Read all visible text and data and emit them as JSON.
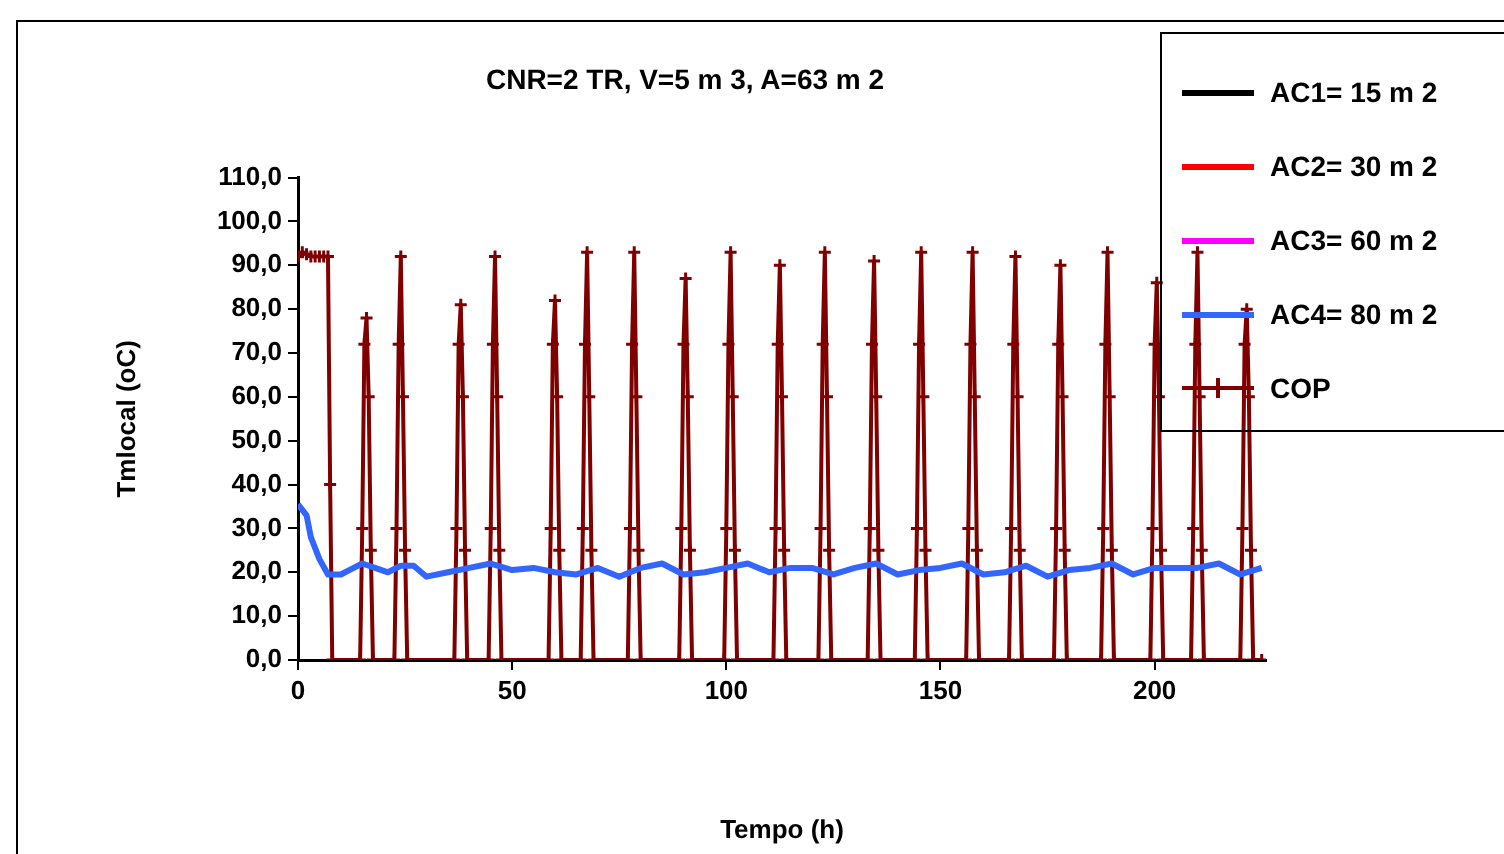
{
  "chart_data": {
    "type": "line",
    "title": "CNR=2 TR, V=5 m 3, A=63 m 2",
    "xlabel": "Tempo (h)",
    "ylabel": "Tmlocal (oC)",
    "xlim": [
      0,
      226
    ],
    "xticks": [
      0,
      50,
      100,
      150,
      200
    ],
    "ylim": [
      0,
      110
    ],
    "yticks": [
      {
        "value": 0,
        "label": "0,0"
      },
      {
        "value": 10,
        "label": "10,0"
      },
      {
        "value": 20,
        "label": "20,0"
      },
      {
        "value": 30,
        "label": "30,0"
      },
      {
        "value": 40,
        "label": "40,0"
      },
      {
        "value": 50,
        "label": "50,0"
      },
      {
        "value": 60,
        "label": "60,0"
      },
      {
        "value": 70,
        "label": "70,0"
      },
      {
        "value": 80,
        "label": "80,0"
      },
      {
        "value": 90,
        "label": "90,0"
      },
      {
        "value": 100,
        "label": "100,0"
      },
      {
        "value": 110,
        "label": "110,0"
      }
    ],
    "grid": false,
    "legend": "top right",
    "line_style": "solid",
    "series": [
      {
        "name": "AC1= 15 m 2",
        "color": "#000000",
        "marker": "none"
      },
      {
        "name": "AC2= 30 m 2",
        "color": "#ff0000",
        "marker": "none"
      },
      {
        "name": "AC3= 60 m 2",
        "color": "#ff00ff",
        "marker": "none"
      },
      {
        "name": "AC4= 80 m 2",
        "color": "#3366ff",
        "marker": "none",
        "x": [
          0,
          2,
          3,
          5,
          7,
          10,
          13,
          15,
          18,
          21,
          24,
          27,
          30,
          35,
          40,
          45,
          50,
          55,
          60,
          65,
          70,
          75,
          80,
          85,
          90,
          95,
          100,
          105,
          110,
          115,
          120,
          125,
          130,
          135,
          140,
          145,
          150,
          155,
          160,
          165,
          170,
          175,
          180,
          185,
          190,
          195,
          200,
          205,
          210,
          215,
          220,
          225
        ],
        "values": [
          35.5,
          33,
          28,
          23,
          19.5,
          19.5,
          21,
          22,
          21,
          20,
          21.5,
          21.5,
          19,
          20,
          21,
          22,
          20.5,
          21,
          20,
          19.5,
          21,
          19,
          21,
          22,
          19.5,
          20,
          21,
          22,
          20,
          21,
          21,
          19.5,
          21,
          22,
          19.5,
          20.5,
          21,
          22,
          19.5,
          20,
          21.5,
          19,
          20.5,
          21,
          22,
          19.5,
          21,
          21,
          21,
          22,
          19.5,
          21
        ]
      },
      {
        "name": "COP",
        "color": "#800000",
        "marker": "cross",
        "x": [
          0,
          1,
          2,
          3,
          4,
          5,
          6,
          7,
          7.5,
          8,
          14.5,
          15,
          15.5,
          16,
          16.5,
          17,
          17.5,
          22.5,
          23,
          23.5,
          24,
          24.5,
          25,
          25.5,
          36.5,
          37,
          37.5,
          38,
          38.5,
          39,
          39.5,
          44.5,
          45,
          45.5,
          46,
          46.5,
          47,
          47.5,
          58.5,
          59,
          59.5,
          60,
          60.5,
          61,
          61.5,
          66,
          66.5,
          67,
          67.5,
          68,
          68.5,
          69,
          77,
          77.5,
          78,
          78.5,
          79,
          79.5,
          80,
          89,
          89.5,
          90,
          90.5,
          91,
          91.5,
          92,
          99.5,
          100,
          100.5,
          101,
          101.5,
          102,
          102.5,
          111,
          111.5,
          112,
          112.5,
          113,
          113.5,
          114,
          121.5,
          122,
          122.5,
          123,
          123.5,
          124,
          124.5,
          133,
          133.5,
          134,
          134.5,
          135,
          135.5,
          136,
          144,
          144.5,
          145,
          145.5,
          146,
          146.5,
          147,
          156,
          156.5,
          157,
          157.5,
          158,
          158.5,
          159,
          166,
          166.5,
          167,
          167.5,
          168,
          168.5,
          169,
          176.5,
          177,
          177.5,
          178,
          178.5,
          179,
          179.5,
          187.5,
          188,
          188.5,
          189,
          189.5,
          190,
          190.5,
          199,
          199.5,
          200,
          200.5,
          201,
          201.5,
          202,
          208.5,
          209,
          209.5,
          210,
          210.5,
          211,
          211.5,
          220,
          220.5,
          221,
          221.5,
          222,
          222.5,
          223,
          225
        ],
        "values": [
          92,
          93,
          92.5,
          92,
          92,
          92,
          92,
          92,
          40,
          0,
          0,
          30,
          72,
          78,
          60,
          25,
          0,
          0,
          30,
          72,
          92,
          60,
          25,
          0,
          0,
          30,
          72,
          81,
          60,
          25,
          0,
          0,
          30,
          72,
          92,
          60,
          25,
          0,
          0,
          30,
          72,
          82,
          60,
          25,
          0,
          0,
          30,
          72,
          93,
          60,
          25,
          0,
          0,
          30,
          72,
          93,
          60,
          25,
          0,
          0,
          30,
          72,
          87,
          60,
          25,
          0,
          0,
          30,
          72,
          93,
          60,
          25,
          0,
          0,
          30,
          72,
          90,
          60,
          25,
          0,
          0,
          30,
          72,
          93,
          60,
          25,
          0,
          0,
          30,
          72,
          91,
          60,
          25,
          0,
          0,
          30,
          72,
          93,
          60,
          25,
          0,
          0,
          30,
          72,
          93,
          60,
          25,
          0,
          0,
          30,
          72,
          92,
          60,
          25,
          0,
          0,
          30,
          72,
          90,
          60,
          25,
          0,
          0,
          30,
          72,
          93,
          60,
          25,
          0,
          0,
          30,
          72,
          86,
          60,
          25,
          0,
          0,
          30,
          72,
          93,
          60,
          25,
          0,
          0,
          30,
          72,
          80,
          60,
          25,
          0,
          0
        ]
      }
    ]
  }
}
